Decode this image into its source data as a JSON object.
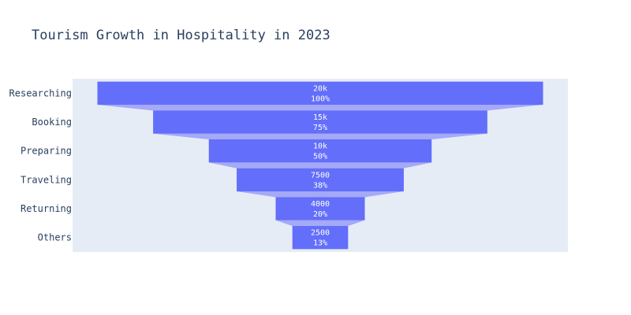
{
  "chart_data": {
    "type": "funnel",
    "title": "Tourism Growth in Hospitality in 2023",
    "stages": [
      "Researching",
      "Booking",
      "Preparing",
      "Traveling",
      "Returning",
      "Others"
    ],
    "values": [
      20000,
      15000,
      10000,
      7500,
      4000,
      2500
    ],
    "value_labels": [
      "20k",
      "15k",
      "10k",
      "7500",
      "4000",
      "2500"
    ],
    "percent_labels": [
      "100%",
      "75%",
      "50%",
      "38%",
      "20%",
      "13%"
    ],
    "colors": {
      "bar": "#636efa",
      "connector": "#a4a9f8",
      "plot_bg": "#e5ecf6",
      "text": "#2a3f5f",
      "bar_text": "#ffffff"
    }
  }
}
